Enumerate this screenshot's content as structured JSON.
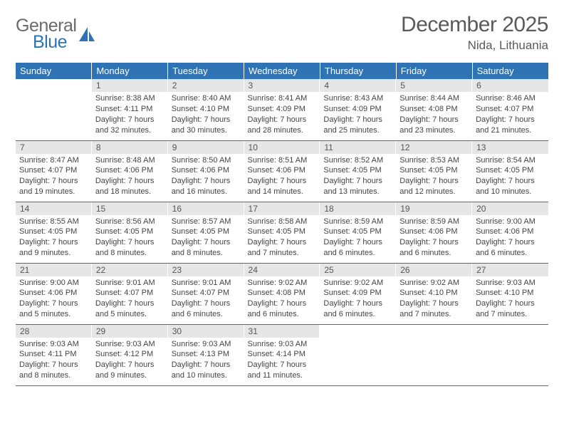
{
  "brand": {
    "word1": "General",
    "word2": "Blue"
  },
  "title": "December 2025",
  "location": "Nida, Lithuania",
  "colors": {
    "header_bg": "#2f73b4",
    "header_text": "#ffffff",
    "daynum_bg": "#e6e6e6",
    "border": "#2f73b4",
    "text": "#444444",
    "title_text": "#5a5a5a"
  },
  "fonts": {
    "title_size_pt": 22,
    "location_size_pt": 13,
    "th_size_pt": 10,
    "body_size_pt": 8
  },
  "day_headers": [
    "Sunday",
    "Monday",
    "Tuesday",
    "Wednesday",
    "Thursday",
    "Friday",
    "Saturday"
  ],
  "weeks": [
    [
      {
        "empty": true
      },
      {
        "num": "1",
        "sunrise": "Sunrise: 8:38 AM",
        "sunset": "Sunset: 4:11 PM",
        "daylight1": "Daylight: 7 hours",
        "daylight2": "and 32 minutes."
      },
      {
        "num": "2",
        "sunrise": "Sunrise: 8:40 AM",
        "sunset": "Sunset: 4:10 PM",
        "daylight1": "Daylight: 7 hours",
        "daylight2": "and 30 minutes."
      },
      {
        "num": "3",
        "sunrise": "Sunrise: 8:41 AM",
        "sunset": "Sunset: 4:09 PM",
        "daylight1": "Daylight: 7 hours",
        "daylight2": "and 28 minutes."
      },
      {
        "num": "4",
        "sunrise": "Sunrise: 8:43 AM",
        "sunset": "Sunset: 4:09 PM",
        "daylight1": "Daylight: 7 hours",
        "daylight2": "and 25 minutes."
      },
      {
        "num": "5",
        "sunrise": "Sunrise: 8:44 AM",
        "sunset": "Sunset: 4:08 PM",
        "daylight1": "Daylight: 7 hours",
        "daylight2": "and 23 minutes."
      },
      {
        "num": "6",
        "sunrise": "Sunrise: 8:46 AM",
        "sunset": "Sunset: 4:07 PM",
        "daylight1": "Daylight: 7 hours",
        "daylight2": "and 21 minutes."
      }
    ],
    [
      {
        "num": "7",
        "sunrise": "Sunrise: 8:47 AM",
        "sunset": "Sunset: 4:07 PM",
        "daylight1": "Daylight: 7 hours",
        "daylight2": "and 19 minutes."
      },
      {
        "num": "8",
        "sunrise": "Sunrise: 8:48 AM",
        "sunset": "Sunset: 4:06 PM",
        "daylight1": "Daylight: 7 hours",
        "daylight2": "and 18 minutes."
      },
      {
        "num": "9",
        "sunrise": "Sunrise: 8:50 AM",
        "sunset": "Sunset: 4:06 PM",
        "daylight1": "Daylight: 7 hours",
        "daylight2": "and 16 minutes."
      },
      {
        "num": "10",
        "sunrise": "Sunrise: 8:51 AM",
        "sunset": "Sunset: 4:06 PM",
        "daylight1": "Daylight: 7 hours",
        "daylight2": "and 14 minutes."
      },
      {
        "num": "11",
        "sunrise": "Sunrise: 8:52 AM",
        "sunset": "Sunset: 4:05 PM",
        "daylight1": "Daylight: 7 hours",
        "daylight2": "and 13 minutes."
      },
      {
        "num": "12",
        "sunrise": "Sunrise: 8:53 AM",
        "sunset": "Sunset: 4:05 PM",
        "daylight1": "Daylight: 7 hours",
        "daylight2": "and 12 minutes."
      },
      {
        "num": "13",
        "sunrise": "Sunrise: 8:54 AM",
        "sunset": "Sunset: 4:05 PM",
        "daylight1": "Daylight: 7 hours",
        "daylight2": "and 10 minutes."
      }
    ],
    [
      {
        "num": "14",
        "sunrise": "Sunrise: 8:55 AM",
        "sunset": "Sunset: 4:05 PM",
        "daylight1": "Daylight: 7 hours",
        "daylight2": "and 9 minutes."
      },
      {
        "num": "15",
        "sunrise": "Sunrise: 8:56 AM",
        "sunset": "Sunset: 4:05 PM",
        "daylight1": "Daylight: 7 hours",
        "daylight2": "and 8 minutes."
      },
      {
        "num": "16",
        "sunrise": "Sunrise: 8:57 AM",
        "sunset": "Sunset: 4:05 PM",
        "daylight1": "Daylight: 7 hours",
        "daylight2": "and 8 minutes."
      },
      {
        "num": "17",
        "sunrise": "Sunrise: 8:58 AM",
        "sunset": "Sunset: 4:05 PM",
        "daylight1": "Daylight: 7 hours",
        "daylight2": "and 7 minutes."
      },
      {
        "num": "18",
        "sunrise": "Sunrise: 8:59 AM",
        "sunset": "Sunset: 4:05 PM",
        "daylight1": "Daylight: 7 hours",
        "daylight2": "and 6 minutes."
      },
      {
        "num": "19",
        "sunrise": "Sunrise: 8:59 AM",
        "sunset": "Sunset: 4:06 PM",
        "daylight1": "Daylight: 7 hours",
        "daylight2": "and 6 minutes."
      },
      {
        "num": "20",
        "sunrise": "Sunrise: 9:00 AM",
        "sunset": "Sunset: 4:06 PM",
        "daylight1": "Daylight: 7 hours",
        "daylight2": "and 6 minutes."
      }
    ],
    [
      {
        "num": "21",
        "sunrise": "Sunrise: 9:00 AM",
        "sunset": "Sunset: 4:06 PM",
        "daylight1": "Daylight: 7 hours",
        "daylight2": "and 5 minutes."
      },
      {
        "num": "22",
        "sunrise": "Sunrise: 9:01 AM",
        "sunset": "Sunset: 4:07 PM",
        "daylight1": "Daylight: 7 hours",
        "daylight2": "and 5 minutes."
      },
      {
        "num": "23",
        "sunrise": "Sunrise: 9:01 AM",
        "sunset": "Sunset: 4:07 PM",
        "daylight1": "Daylight: 7 hours",
        "daylight2": "and 6 minutes."
      },
      {
        "num": "24",
        "sunrise": "Sunrise: 9:02 AM",
        "sunset": "Sunset: 4:08 PM",
        "daylight1": "Daylight: 7 hours",
        "daylight2": "and 6 minutes."
      },
      {
        "num": "25",
        "sunrise": "Sunrise: 9:02 AM",
        "sunset": "Sunset: 4:09 PM",
        "daylight1": "Daylight: 7 hours",
        "daylight2": "and 6 minutes."
      },
      {
        "num": "26",
        "sunrise": "Sunrise: 9:02 AM",
        "sunset": "Sunset: 4:10 PM",
        "daylight1": "Daylight: 7 hours",
        "daylight2": "and 7 minutes."
      },
      {
        "num": "27",
        "sunrise": "Sunrise: 9:03 AM",
        "sunset": "Sunset: 4:10 PM",
        "daylight1": "Daylight: 7 hours",
        "daylight2": "and 7 minutes."
      }
    ],
    [
      {
        "num": "28",
        "sunrise": "Sunrise: 9:03 AM",
        "sunset": "Sunset: 4:11 PM",
        "daylight1": "Daylight: 7 hours",
        "daylight2": "and 8 minutes."
      },
      {
        "num": "29",
        "sunrise": "Sunrise: 9:03 AM",
        "sunset": "Sunset: 4:12 PM",
        "daylight1": "Daylight: 7 hours",
        "daylight2": "and 9 minutes."
      },
      {
        "num": "30",
        "sunrise": "Sunrise: 9:03 AM",
        "sunset": "Sunset: 4:13 PM",
        "daylight1": "Daylight: 7 hours",
        "daylight2": "and 10 minutes."
      },
      {
        "num": "31",
        "sunrise": "Sunrise: 9:03 AM",
        "sunset": "Sunset: 4:14 PM",
        "daylight1": "Daylight: 7 hours",
        "daylight2": "and 11 minutes."
      },
      {
        "empty": true
      },
      {
        "empty": true
      },
      {
        "empty": true
      }
    ]
  ]
}
